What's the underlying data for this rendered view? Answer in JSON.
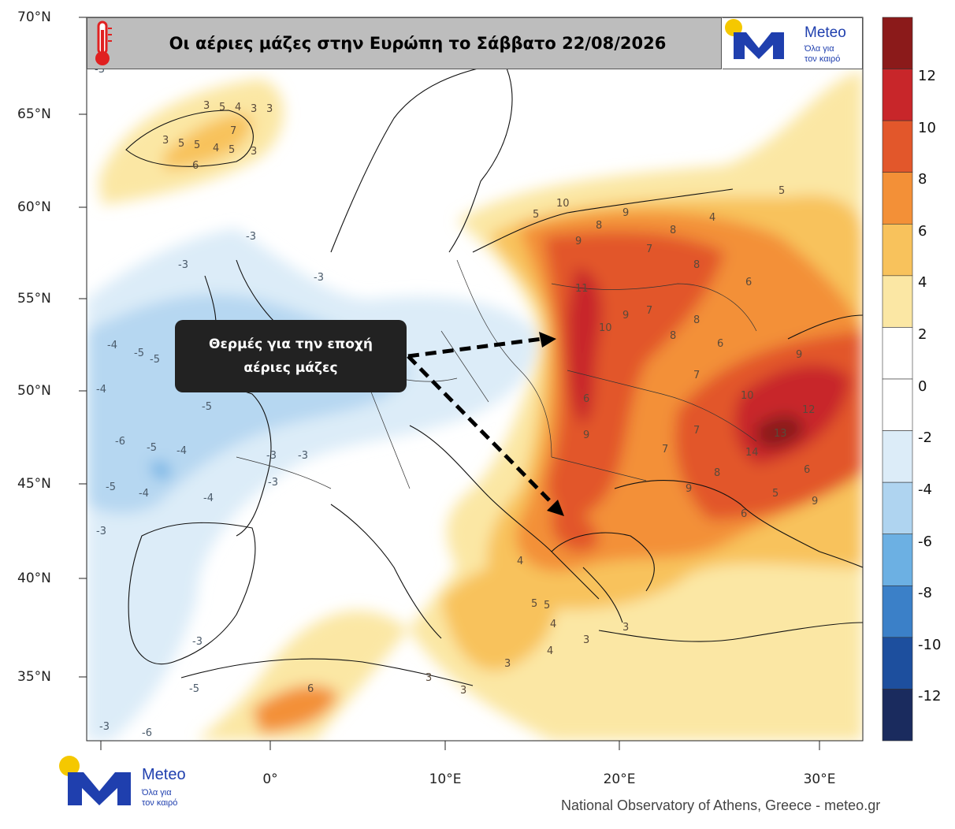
{
  "title": "Οι αέριες μάζες στην Ευρώπη το Σάββατο 22/08/2026",
  "annotation_lines": [
    "Θερμές για την εποχή",
    "αέριες μάζες"
  ],
  "credit": "National Observatory of Athens, Greece - meteo.gr",
  "logo": {
    "name": "Meteo",
    "tagline_1": "Όλα για",
    "tagline_2": "τον καιρό"
  },
  "lat_labels": [
    "70°N",
    "65°N",
    "60°N",
    "55°N",
    "50°N",
    "45°N",
    "40°N",
    "35°N"
  ],
  "lon_labels": [
    "0°",
    "10°E",
    "20°E",
    "30°E"
  ],
  "colorbar": {
    "labels": [
      "12",
      "10",
      "8",
      "6",
      "4",
      "2",
      "0",
      "-2",
      "-4",
      "-6",
      "-8",
      "-10",
      "-12"
    ],
    "colors_top_to_bottom": [
      "#8b1a1a",
      "#c8262a",
      "#e2572b",
      "#f39037",
      "#f8c25c",
      "#fbe7a4",
      "#ffffff",
      "#ffffff",
      "#dcecf8",
      "#afd4f0",
      "#6cb0e3",
      "#3b80c8",
      "#1d4f9e",
      "#1a2b5e"
    ]
  },
  "colors": {
    "accent_blue": "#1f3fae",
    "logo_sun": "#f5c800",
    "thermometer": "#e02020"
  },
  "icons": [
    "thermometer-icon",
    "meteo-logo-icon"
  ],
  "contour_labels": {
    "warm": [
      "3",
      "5",
      "4",
      "3",
      "3",
      "3",
      "5",
      "5",
      "4",
      "5",
      "3",
      "6",
      "7",
      "5",
      "10",
      "9",
      "8",
      "9",
      "7",
      "8",
      "8",
      "4",
      "5",
      "6",
      "11",
      "10",
      "9",
      "7",
      "8",
      "8",
      "6",
      "7",
      "7",
      "9",
      "12",
      "13",
      "14",
      "10",
      "9",
      "6",
      "7",
      "9",
      "8",
      "6",
      "6",
      "9",
      "5",
      "4",
      "5",
      "5",
      "4",
      "3",
      "3",
      "3",
      "4",
      "6",
      "3",
      "3"
    ],
    "cold": [
      "-3",
      "-3",
      "-3",
      "-3",
      "-4",
      "-5",
      "-4",
      "-5",
      "-5",
      "-6",
      "-5",
      "-4",
      "-5",
      "-4",
      "-3",
      "-3",
      "-3",
      "-4",
      "-3",
      "-3",
      "-5",
      "-6",
      "-3"
    ]
  }
}
